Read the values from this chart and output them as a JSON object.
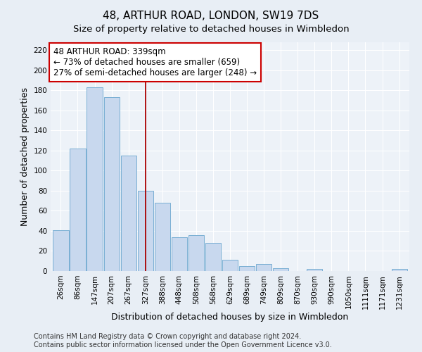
{
  "title": "48, ARTHUR ROAD, LONDON, SW19 7DS",
  "subtitle": "Size of property relative to detached houses in Wimbledon",
  "xlabel": "Distribution of detached houses by size in Wimbledon",
  "ylabel": "Number of detached properties",
  "categories": [
    "26sqm",
    "86sqm",
    "147sqm",
    "207sqm",
    "267sqm",
    "327sqm",
    "388sqm",
    "448sqm",
    "508sqm",
    "568sqm",
    "629sqm",
    "689sqm",
    "749sqm",
    "809sqm",
    "870sqm",
    "930sqm",
    "990sqm",
    "1050sqm",
    "1111sqm",
    "1171sqm",
    "1231sqm"
  ],
  "values": [
    41,
    122,
    183,
    173,
    115,
    80,
    68,
    34,
    36,
    28,
    11,
    5,
    7,
    3,
    0,
    2,
    0,
    0,
    0,
    0,
    2
  ],
  "bar_color": "#c8d8ee",
  "bar_edge_color": "#7aafd4",
  "vline_x": 5.0,
  "vline_color": "#aa0000",
  "annotation_text": "48 ARTHUR ROAD: 339sqm\n← 73% of detached houses are smaller (659)\n27% of semi-detached houses are larger (248) →",
  "annotation_box_color": "#ffffff",
  "annotation_box_edge": "#cc0000",
  "ylim": [
    0,
    228
  ],
  "yticks": [
    0,
    20,
    40,
    60,
    80,
    100,
    120,
    140,
    160,
    180,
    200,
    220
  ],
  "footer1": "Contains HM Land Registry data © Crown copyright and database right 2024.",
  "footer2": "Contains public sector information licensed under the Open Government Licence v3.0.",
  "bg_color": "#e8eef5",
  "plot_bg_color": "#edf2f8",
  "grid_color": "#ffffff",
  "title_fontsize": 11,
  "xlabel_fontsize": 9,
  "ylabel_fontsize": 9,
  "tick_fontsize": 7.5,
  "annotation_fontsize": 8.5,
  "footer_fontsize": 7
}
